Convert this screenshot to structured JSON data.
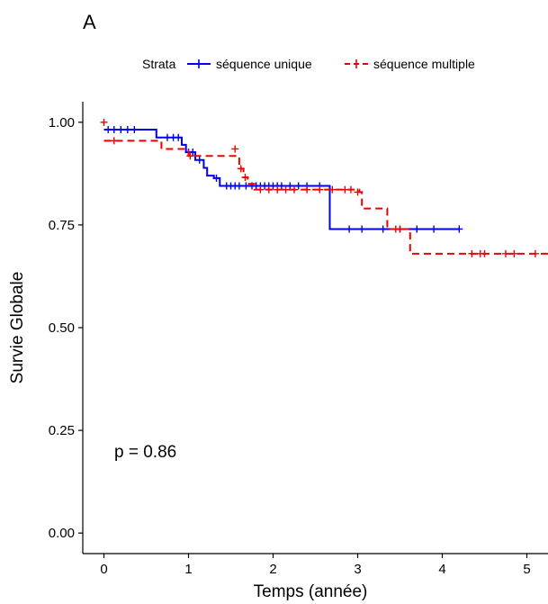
{
  "chart_data": {
    "type": "line",
    "panel_label": "A",
    "xlabel": "Temps (année)",
    "ylabel": "Survie Globale",
    "xlim": [
      -0.25,
      5.25
    ],
    "ylim": [
      -0.05,
      1.05
    ],
    "x_ticks": [
      0,
      1,
      2,
      3,
      4,
      5
    ],
    "y_ticks": [
      0.0,
      0.25,
      0.5,
      0.75,
      1.0
    ],
    "x_tick_labels": [
      "0",
      "1",
      "2",
      "3",
      "4",
      "5"
    ],
    "y_tick_labels": [
      "0.00",
      "0.25",
      "0.50",
      "0.75",
      "1.00"
    ],
    "grid": false,
    "legend": {
      "title": "Strata",
      "position": "top",
      "entries": [
        "séquence unique",
        "séquence multiple"
      ]
    },
    "annotation": "p = 0.86",
    "series": [
      {
        "name": "séquence unique",
        "color": "#0000ee",
        "linestyle": "solid",
        "steps": [
          [
            0,
            0.982
          ],
          [
            0.62,
            0.963
          ],
          [
            0.92,
            0.945
          ],
          [
            0.97,
            0.927
          ],
          [
            1.08,
            0.908
          ],
          [
            1.18,
            0.889
          ],
          [
            1.22,
            0.87
          ],
          [
            1.3,
            0.864
          ],
          [
            1.37,
            0.845
          ],
          [
            2.67,
            0.74
          ],
          [
            4.2,
            0.74
          ]
        ],
        "censored": [
          [
            0.05,
            0.982
          ],
          [
            0.12,
            0.982
          ],
          [
            0.2,
            0.982
          ],
          [
            0.28,
            0.982
          ],
          [
            0.36,
            0.982
          ],
          [
            0.75,
            0.963
          ],
          [
            0.82,
            0.963
          ],
          [
            0.88,
            0.963
          ],
          [
            1.0,
            0.927
          ],
          [
            1.05,
            0.927
          ],
          [
            1.13,
            0.908
          ],
          [
            1.33,
            0.864
          ],
          [
            1.45,
            0.845
          ],
          [
            1.5,
            0.845
          ],
          [
            1.55,
            0.845
          ],
          [
            1.6,
            0.845
          ],
          [
            1.68,
            0.845
          ],
          [
            1.75,
            0.845
          ],
          [
            1.8,
            0.845
          ],
          [
            1.85,
            0.845
          ],
          [
            1.9,
            0.845
          ],
          [
            1.95,
            0.845
          ],
          [
            2.0,
            0.845
          ],
          [
            2.05,
            0.845
          ],
          [
            2.1,
            0.845
          ],
          [
            2.2,
            0.845
          ],
          [
            2.3,
            0.845
          ],
          [
            2.4,
            0.845
          ],
          [
            2.55,
            0.845
          ],
          [
            2.9,
            0.74
          ],
          [
            3.05,
            0.74
          ],
          [
            3.3,
            0.74
          ],
          [
            3.5,
            0.74
          ],
          [
            3.7,
            0.74
          ],
          [
            3.9,
            0.74
          ],
          [
            4.2,
            0.74
          ]
        ]
      },
      {
        "name": "séquence multiple",
        "color": "#ee0000",
        "linestyle": "dashed",
        "steps": [
          [
            0,
            0.955
          ],
          [
            0.68,
            0.935
          ],
          [
            1.0,
            0.918
          ],
          [
            1.6,
            0.887
          ],
          [
            1.65,
            0.866
          ],
          [
            1.7,
            0.85
          ],
          [
            1.78,
            0.836
          ],
          [
            3.02,
            0.83
          ],
          [
            3.05,
            0.79
          ],
          [
            3.35,
            0.74
          ],
          [
            3.62,
            0.68
          ],
          [
            5.25,
            0.68
          ]
        ],
        "censored": [
          [
            0.0,
            1.0
          ],
          [
            0.12,
            0.955
          ],
          [
            1.02,
            0.918
          ],
          [
            1.55,
            0.935
          ],
          [
            1.62,
            0.887
          ],
          [
            1.67,
            0.866
          ],
          [
            1.85,
            0.836
          ],
          [
            1.95,
            0.836
          ],
          [
            2.05,
            0.836
          ],
          [
            2.15,
            0.836
          ],
          [
            2.25,
            0.836
          ],
          [
            2.4,
            0.836
          ],
          [
            2.55,
            0.836
          ],
          [
            2.7,
            0.836
          ],
          [
            2.85,
            0.836
          ],
          [
            2.92,
            0.836
          ],
          [
            3.0,
            0.83
          ],
          [
            3.45,
            0.74
          ],
          [
            3.5,
            0.74
          ],
          [
            4.35,
            0.68
          ],
          [
            4.45,
            0.68
          ],
          [
            4.5,
            0.68
          ],
          [
            4.75,
            0.68
          ],
          [
            4.85,
            0.68
          ],
          [
            5.1,
            0.68
          ]
        ]
      }
    ]
  }
}
